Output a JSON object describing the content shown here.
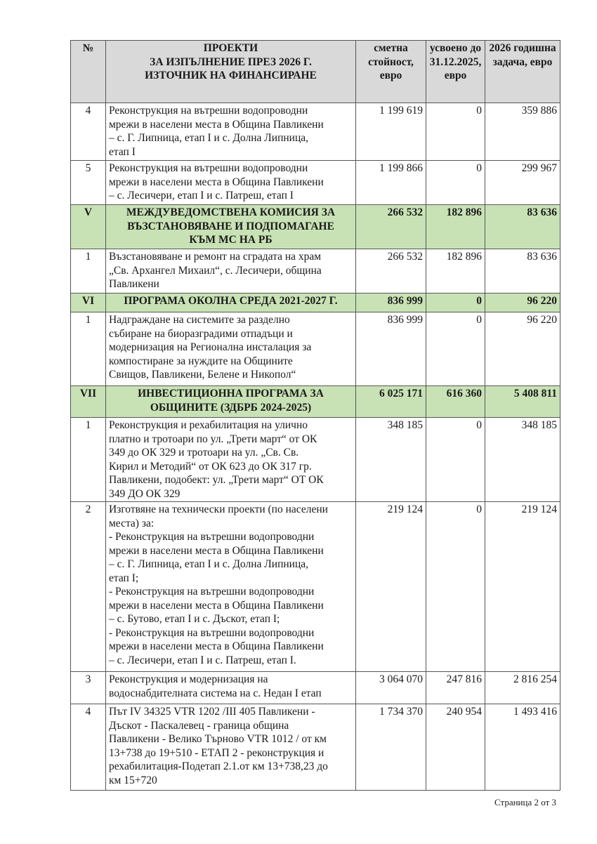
{
  "table": {
    "headers": [
      "№",
      "ПРОЕКТИ\nЗА ИЗПЪЛНЕНИЕ ПРЕЗ 2026 Г.\nИЗТОЧНИК НА ФИНАНСИРАНЕ",
      "сметна стойност, евро",
      "усвоено до 31.12.2025, евро",
      "2026 годишна задача, евро"
    ],
    "rows": [
      {
        "type": "item",
        "no": "4",
        "text": "Реконструкция на вътрешни водопроводни\nмрежи в населени места в Община Павликени\n– с. Г. Липница, етап I и с. Долна Липница,\nетап I",
        "cost": "1 199 619",
        "spent": "0",
        "task": "359 886"
      },
      {
        "type": "item",
        "no": "5",
        "text": "Реконструкция на вътрешни водопроводни\nмрежи в населени места в Община Павликени\n– с. Лесичери, етап I и с. Патреш, етап I",
        "cost": "1 199 866",
        "spent": "0",
        "task": "299 967"
      },
      {
        "type": "section",
        "no": "V",
        "text": "МЕЖДУВЕДОМСТВЕНА КОМИСИЯ ЗА\nВЪЗСТАНОВЯВАНЕ И ПОДПОМАГАНЕ\nКЪМ МС НА РБ",
        "cost": "266 532",
        "spent": "182 896",
        "task": "83 636"
      },
      {
        "type": "item",
        "no": "1",
        "text": "Възстановяване и ремонт на сградата на храм\n„Св. Архангел Михаил“, с. Лесичери, община\nПавликени",
        "cost": "266 532",
        "spent": "182 896",
        "task": "83 636"
      },
      {
        "type": "section",
        "no": "VI",
        "text": "ПРОГРАМА ОКОЛНА СРЕДА 2021-2027 Г.",
        "cost": "836 999",
        "spent": "0",
        "task": "96 220"
      },
      {
        "type": "item",
        "no": "1",
        "text": "Надграждане на системите за разделно\nсъбиране на биоразградими отпадъци и\nмодернизация на Регионална инсталация за\nкомпостиране за нуждите на Общините\nСвищов, Павликени, Белене и Никопол“",
        "cost": "836 999",
        "spent": "0",
        "task": "96 220"
      },
      {
        "type": "section",
        "no": "VII",
        "text": "ИНВЕСТИЦИОННА ПРОГРАМА ЗА\nОБЩИНИТЕ (ЗДБРБ 2024-2025)",
        "cost": "6 025 171",
        "spent": "616 360",
        "task": "5 408 811"
      },
      {
        "type": "item",
        "no": "1",
        "text": "Реконструкция и рехабилитация на улично\nплатно и тротоари по ул. „Трети март“ от ОК\n349 до ОК 329 и тротоари на ул. „Св. Св.\nКирил и Методий“ от ОК 623 до ОК 317 гр.\nПавликени, подобект: ул. „Трети март“ ОТ ОК\n349 ДО ОК 329",
        "cost": "348 185",
        "spent": "0",
        "task": "348 185"
      },
      {
        "type": "item",
        "no": "2",
        "text": "Изготвяне на технически проекти (по населени\nместа) за:\n- Реконструкция на вътрешни водопроводни\nмрежи в населени места в Община Павликени\n– с. Г. Липница, етап I и с. Долна Липница,\nетап I;\n- Реконструкция на вътрешни водопроводни\nмрежи в населени места в Община Павликени\n– с. Бутово, етап I и с. Дъскот, етап I;\n- Реконструкция на вътрешни водопроводни\nмрежи в населени места в Община Павликени\n– с. Лесичери, етап I и с. Патреш, етап I.",
        "cost": "219 124",
        "spent": "0",
        "task": "219 124"
      },
      {
        "type": "item",
        "no": "3",
        "text": "Реконструкция и модернизация на\nводоснабдителната система на с. Недан I етап",
        "cost": "3 064 070",
        "spent": "247 816",
        "task": "2 816 254"
      },
      {
        "type": "item",
        "no": "4",
        "text": "Път IV 34325 VTR 1202 /III 405 Павликени -\nДъскот - Паскалевец - граница община\nПавликени - Велико Търново VTR 1012 / от км\n13+738 до 19+510 - ЕТАП 2 - реконструкция и\nрехабилитация-Подетап 2.1.от км 13+738,23 до\nкм 15+720",
        "cost": "1 734 370",
        "spent": "240 954",
        "task": "1 493 416"
      }
    ]
  },
  "footer": {
    "page": "Страница 2 от 3"
  },
  "colors": {
    "section_bg": "#c8e2b5",
    "header_bg": "#d9d9d9"
  }
}
